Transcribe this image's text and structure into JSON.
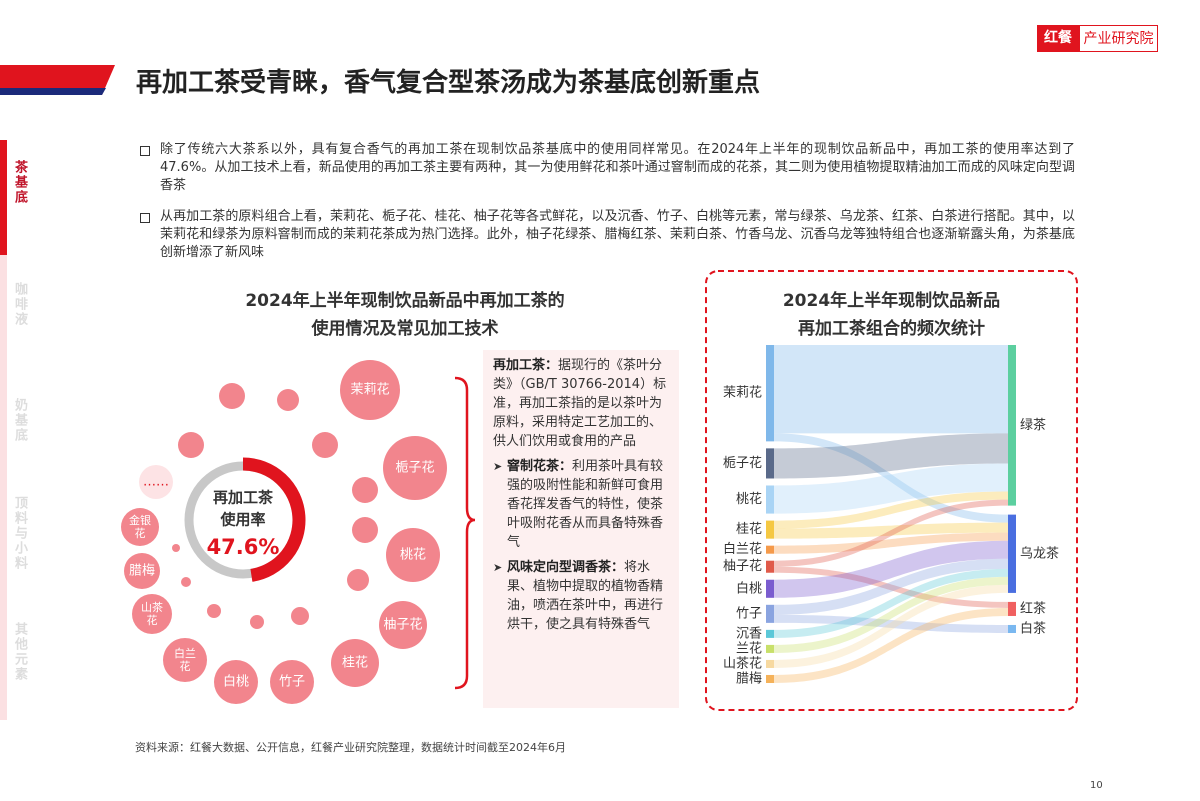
{
  "header": {
    "logo_brand": "红餐",
    "logo_text": "产业研究院",
    "title": "再加工茶受青睐，香气复合型茶汤成为茶基底创新重点"
  },
  "sidebar": [
    "茶基底",
    "咖啡液",
    "奶基底",
    "顶料与小料",
    "其他元素"
  ],
  "bullets": [
    "除了传统六大茶系以外，具有复合香气的再加工茶在现制饮品茶基底中的使用同样常见。在2024年上半年的现制饮品新品中，再加工茶的使用率达到了47.6%。从加工技术上看，新品使用的再加工茶主要有两种，其一为使用鲜花和茶叶通过窨制而成的花茶，其二则为使用植物提取精油加工而成的风味定向型调香茶",
    "从再加工茶的原料组合上看，茉莉花、栀子花、桂花、柚子花等各式鲜花，以及沉香、竹子、白桃等元素，常与绿茶、乌龙茶、红茶、白茶进行搭配。其中，以茉莉花和绿茶为原料窨制而成的茉莉花茶成为热门选择。此外，柚子花绿茶、腊梅红茶、茉莉白茶、竹香乌龙、沉香乌龙等独特组合也逐渐崭露头角，为茶基底创新增添了新风味"
  ],
  "left_panel": {
    "title": [
      "2024年上半年现制饮品新品中再加工茶的",
      "使用情况及常见加工技术"
    ],
    "donut": {
      "type": "donut",
      "label": [
        "再加工茶",
        "使用率"
      ],
      "value": 47.6,
      "value_label": "47.6%",
      "ylim": [
        0,
        100
      ],
      "color": "#e0141e"
    },
    "flowers": [
      "茉莉花",
      "栀子花",
      "桃花",
      "柚子花",
      "桂花",
      "竹子",
      "白桃",
      "白兰花",
      "山茶花",
      "腊梅",
      "金银花",
      "……"
    ],
    "definition": {
      "term": "再加工茶：",
      "text": "据现行的《茶叶分类》（GB/T 30766-2014）标准，再加工茶指的是以茶叶为原料，采用特定工艺加工的、供人们饮用或食用的产品",
      "techniques": [
        {
          "name": "窨制花茶：",
          "text": "利用茶叶具有较强的吸附性能和新鲜可食用香花挥发香气的特性，使茶叶吸附花香从而具备特殊香气"
        },
        {
          "name": "风味定向型调香茶：",
          "text": "将水果、植物中提取的植物香精油，喷洒在茶叶中，再进行烘干，使之具有特殊香气"
        }
      ]
    }
  },
  "sankey": {
    "type": "sankey",
    "title": [
      "2024年上半年现制饮品新品",
      "再加工茶组合的频次统计"
    ],
    "sources": [
      {
        "name": "茉莉花",
        "color": "#7fb8ea"
      },
      {
        "name": "栀子花",
        "color": "#5a6a8a"
      },
      {
        "name": "桃花",
        "color": "#a9d4f5"
      },
      {
        "name": "桂花",
        "color": "#f5c842"
      },
      {
        "name": "白兰花",
        "color": "#f59a4a"
      },
      {
        "name": "柚子花",
        "color": "#e05a4a"
      },
      {
        "name": "白桃",
        "color": "#7a5ccf"
      },
      {
        "name": "竹子",
        "color": "#8aa4e0"
      },
      {
        "name": "沉香",
        "color": "#5bc8d8"
      },
      {
        "name": "兰花",
        "color": "#c8e06a"
      },
      {
        "name": "山茶花",
        "color": "#f7d9a0"
      },
      {
        "name": "腊梅",
        "color": "#f5b25a"
      }
    ],
    "targets": [
      {
        "name": "绿茶",
        "color": "#5ccf9f"
      },
      {
        "name": "乌龙茶",
        "color": "#4a6ee0"
      },
      {
        "name": "红茶",
        "color": "#f06060"
      },
      {
        "name": "白茶",
        "color": "#7ab8f0"
      }
    ],
    "flows": [
      {
        "source": "茉莉花",
        "target": "绿茶",
        "value": 44
      },
      {
        "source": "茉莉花",
        "target": "乌龙茶",
        "value": 4
      },
      {
        "source": "栀子花",
        "target": "绿茶",
        "value": 15
      },
      {
        "source": "桃花",
        "target": "绿茶",
        "value": 14
      },
      {
        "source": "桂花",
        "target": "绿茶",
        "value": 4
      },
      {
        "source": "桂花",
        "target": "乌龙茶",
        "value": 5
      },
      {
        "source": "白兰花",
        "target": "乌龙茶",
        "value": 4
      },
      {
        "source": "柚子花",
        "target": "绿茶",
        "value": 3
      },
      {
        "source": "柚子花",
        "target": "红茶",
        "value": 3
      },
      {
        "source": "白桃",
        "target": "乌龙茶",
        "value": 9
      },
      {
        "source": "竹子",
        "target": "乌龙茶",
        "value": 5
      },
      {
        "source": "竹子",
        "target": "白茶",
        "value": 4
      },
      {
        "source": "沉香",
        "target": "乌龙茶",
        "value": 4
      },
      {
        "source": "兰花",
        "target": "乌龙茶",
        "value": 4
      },
      {
        "source": "山茶花",
        "target": "乌龙茶",
        "value": 4
      },
      {
        "source": "腊梅",
        "target": "红茶",
        "value": 4
      }
    ]
  },
  "footer": {
    "source": "资料来源：红餐大数据、公开信息，红餐产业研究院整理，数据统计时间截至2024年6月",
    "page": "10"
  }
}
